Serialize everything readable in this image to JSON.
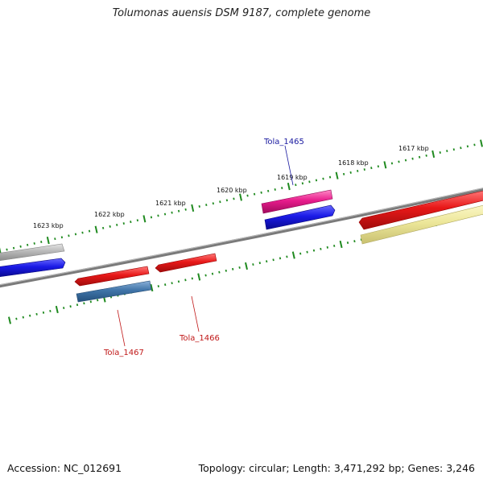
{
  "title": "Tolumonas auensis DSM 9187, complete genome",
  "footer": {
    "accession": "Accession: NC_012691",
    "summary": "Topology: circular; Length: 3,471,292 bp; Genes: 3,246"
  },
  "ticks": [
    "1617 kbp",
    "1618 kbp",
    "1619 kbp",
    "1620 kbp",
    "1621 kbp",
    "1622 kbp",
    "1623 kbp"
  ],
  "gene_labels": [
    {
      "text": "Tola_1465",
      "color": "#1a1aa0"
    },
    {
      "text": "Tola_1466",
      "color": "#c01818"
    },
    {
      "text": "Tola_1467",
      "color": "#c01818"
    }
  ],
  "colors": {
    "backbone": "#7a7a7a",
    "ticks": "#1f8a1f",
    "red": "#e81818",
    "blue": "#1a1ae6",
    "magenta": "#e81c8c",
    "steel": "#3f74a8",
    "gray": "#b8b8b8",
    "yellow": "#ede79a"
  }
}
